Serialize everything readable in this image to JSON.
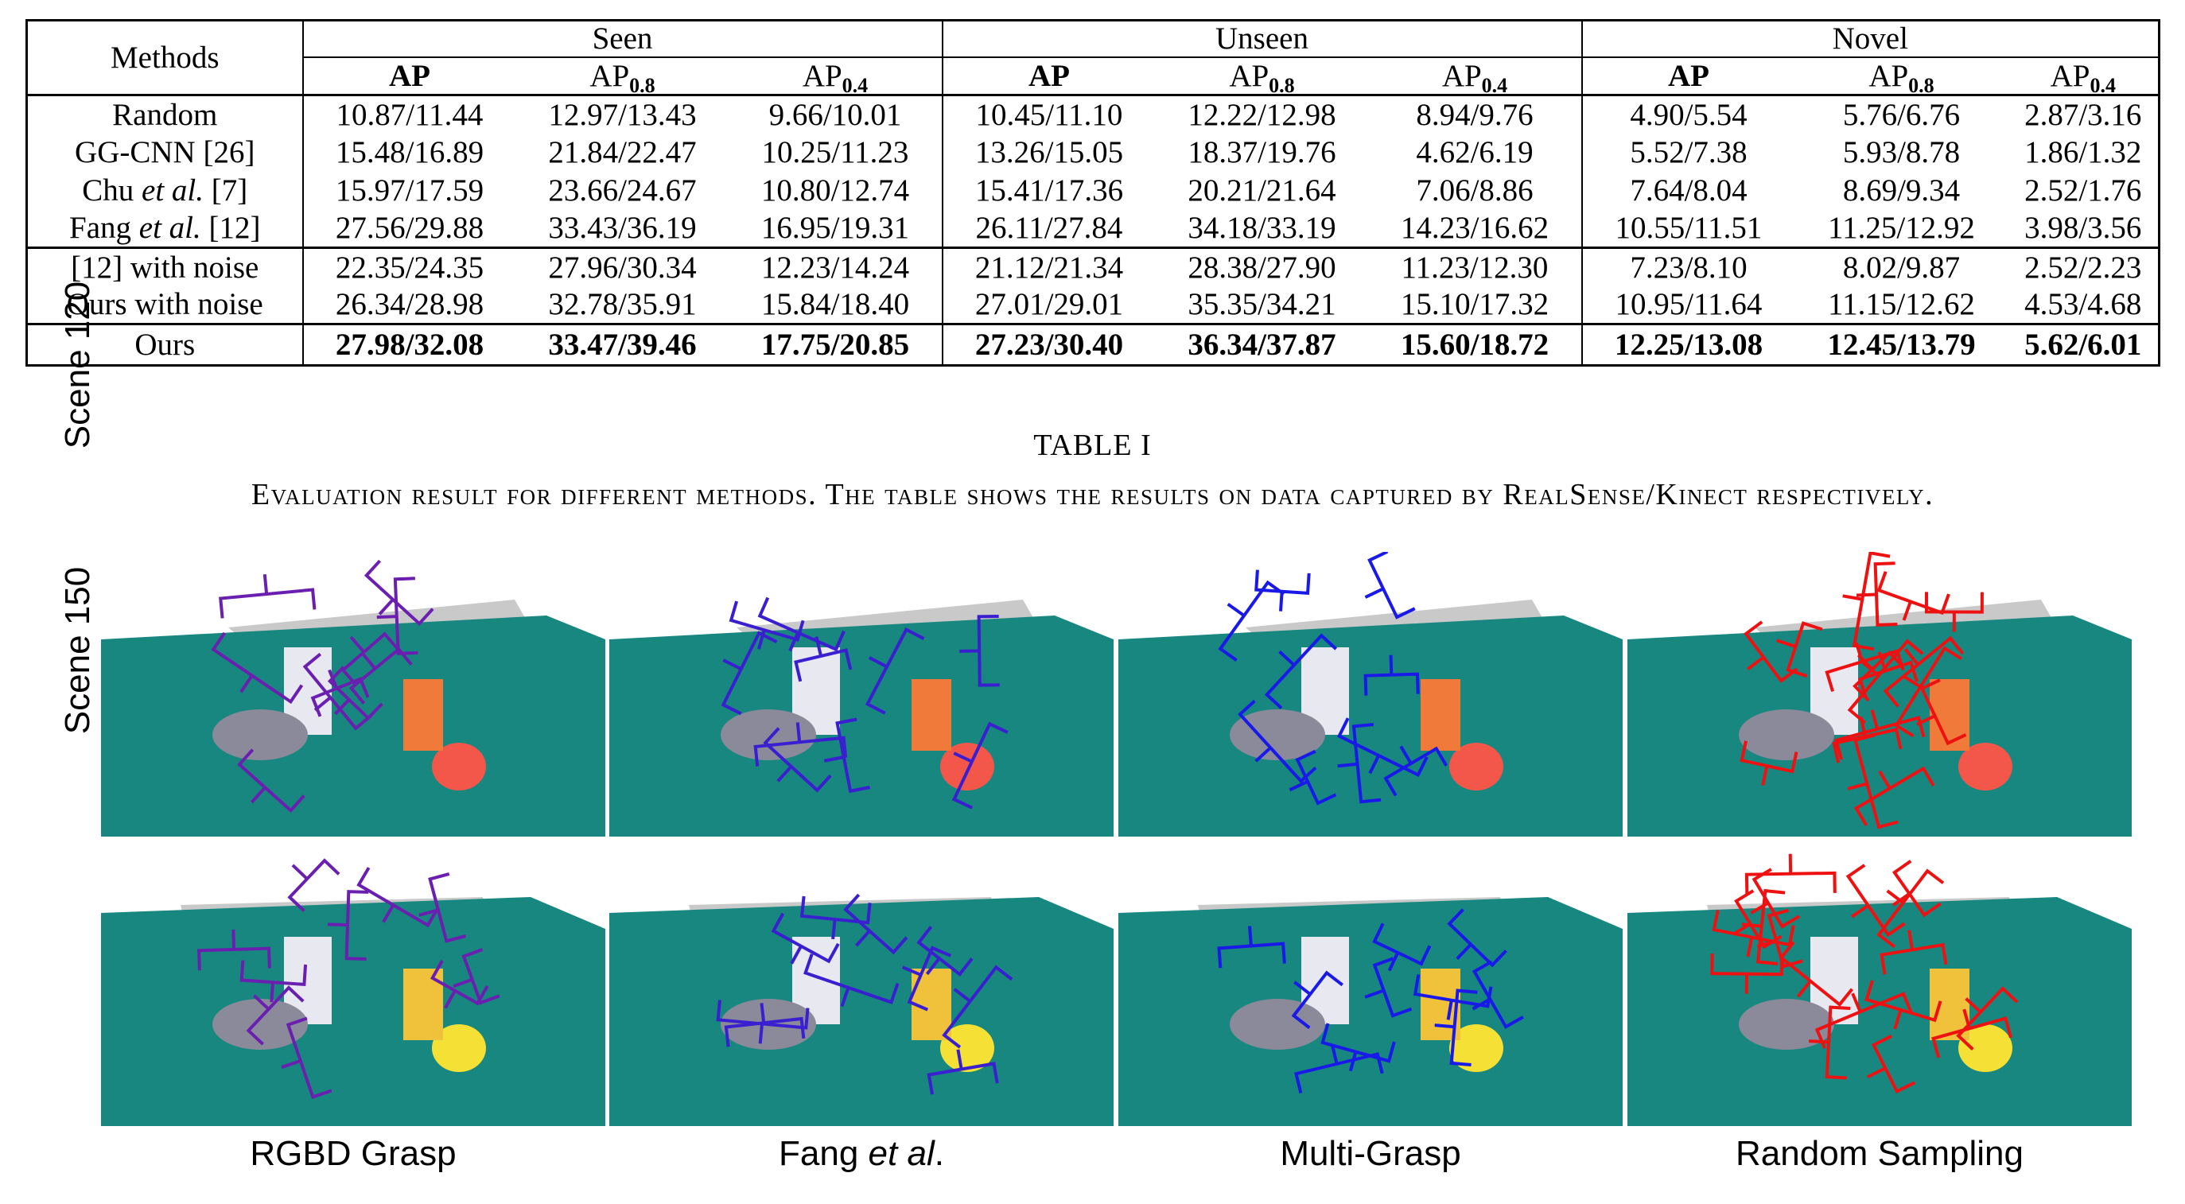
{
  "table": {
    "methods_header": "Methods",
    "groups": [
      "Seen",
      "Unseen",
      "Novel"
    ],
    "metrics": [
      {
        "base": "AP",
        "sub": ""
      },
      {
        "base": "AP",
        "sub": "0.8"
      },
      {
        "base": "AP",
        "sub": "0.4"
      },
      {
        "base": "AP",
        "sub": ""
      },
      {
        "base": "AP",
        "sub": "0.8"
      },
      {
        "base": "AP",
        "sub": "0.4"
      },
      {
        "base": "AP",
        "sub": ""
      },
      {
        "base": "AP",
        "sub": "0.8"
      },
      {
        "base": "AP",
        "sub": "0.4"
      }
    ],
    "rows": [
      {
        "method": "Random",
        "values": [
          "10.87/11.44",
          "12.97/13.43",
          "9.66/10.01",
          "10.45/11.10",
          "12.22/12.98",
          "8.94/9.76",
          "4.90/5.54",
          "5.76/6.76",
          "2.87/3.16"
        ]
      },
      {
        "method": "GG-CNN [26]",
        "values": [
          "15.48/16.89",
          "21.84/22.47",
          "10.25/11.23",
          "13.26/15.05",
          "18.37/19.76",
          "4.62/6.19",
          "5.52/7.38",
          "5.93/8.78",
          "1.86/1.32"
        ]
      },
      {
        "method_pre": "Chu ",
        "method_em": "et al.",
        "method_post": " [7]",
        "values": [
          "15.97/17.59",
          "23.66/24.67",
          "10.80/12.74",
          "15.41/17.36",
          "20.21/21.64",
          "7.06/8.86",
          "7.64/8.04",
          "8.69/9.34",
          "2.52/1.76"
        ]
      },
      {
        "method_pre": "Fang ",
        "method_em": "et al.",
        "method_post": " [12]",
        "values": [
          "27.56/29.88",
          "33.43/36.19",
          "16.95/19.31",
          "26.11/27.84",
          "34.18/33.19",
          "14.23/16.62",
          "10.55/11.51",
          "11.25/12.92",
          "3.98/3.56"
        ]
      },
      {
        "method": "[12] with noise",
        "values": [
          "22.35/24.35",
          "27.96/30.34",
          "12.23/14.24",
          "21.12/21.34",
          "28.38/27.90",
          "11.23/12.30",
          "7.23/8.10",
          "8.02/9.87",
          "2.52/2.23"
        ]
      },
      {
        "method": "Ours with noise",
        "values": [
          "26.34/28.98",
          "32.78/35.91",
          "15.84/18.40",
          "27.01/29.01",
          "35.35/34.21",
          "15.10/17.32",
          "10.95/11.64",
          "11.15/12.62",
          "4.53/4.68"
        ]
      },
      {
        "method": "Ours",
        "values": [
          "27.98/32.08",
          "33.47/39.46",
          "17.75/20.85",
          "27.23/30.40",
          "36.34/37.87",
          "15.60/18.72",
          "12.25/13.08",
          "12.45/13.79",
          "5.62/6.01"
        ]
      }
    ]
  },
  "caption": {
    "label": "TABLE I",
    "text": "Evaluation result for different methods. The table shows the results on data captured by RealSense/Kinect respectively."
  },
  "figure": {
    "rows": [
      "Scene 120",
      "Scene 150"
    ],
    "columns": [
      {
        "text": "RGBD Grasp",
        "em": "",
        "color": "#6a1fb0"
      },
      {
        "text": "Fang ",
        "em": "et al",
        "post": ".",
        "color": "#3a1fd0"
      },
      {
        "text": "Multi-Grasp",
        "em": "",
        "color": "#1a1ae8"
      },
      {
        "text": "Random Sampling",
        "em": "",
        "color": "#ee1111"
      }
    ],
    "colors": {
      "table_surface": "#17877f",
      "shelf": "#c9c9c9"
    }
  }
}
